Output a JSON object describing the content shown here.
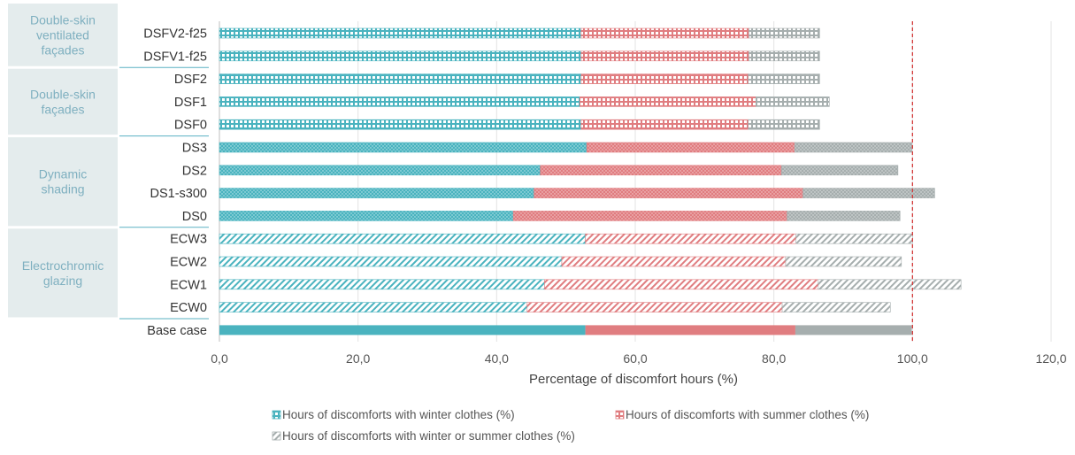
{
  "chart_data": {
    "type": "bar",
    "orientation": "horizontal",
    "stacked": true,
    "xlabel": "Percentage of discomfort hours (%)",
    "ylabel": "",
    "xlim": [
      0,
      120
    ],
    "xticks": [
      "0,0",
      "20,0",
      "40,0",
      "60,0",
      "80,0",
      "100,0",
      "120,0"
    ],
    "grid": "vertical",
    "reference_line": {
      "x": 100,
      "style": "dashed",
      "color": "#d43a3a"
    },
    "legend_position": "bottom",
    "categories": [
      "DSFV2-f25",
      "DSFV1-f25",
      "DSF2",
      "DSF1",
      "DSF0",
      "DS3",
      "DS2",
      "DS1-s300",
      "DS0",
      "ECW3",
      "ECW2",
      "ECW1",
      "ECW0",
      "Base case"
    ],
    "patterns": [
      "grid",
      "grid",
      "grid",
      "grid",
      "grid",
      "dots",
      "dots",
      "dots",
      "dots",
      "hatch",
      "hatch",
      "hatch",
      "hatch",
      "solid"
    ],
    "series": [
      {
        "name": "Hours of discomforts with winter clothes (%)",
        "color": "#4ab3bf",
        "values": [
          52.2,
          52.2,
          52.2,
          52.0,
          52.2,
          53.0,
          46.3,
          45.4,
          42.4,
          52.8,
          49.4,
          46.9,
          44.4,
          52.8
        ]
      },
      {
        "name": "Hours of discomforts with summer clothes (%)",
        "color": "#e07d80",
        "values": [
          24.2,
          24.2,
          24.1,
          25.4,
          24.1,
          30.0,
          34.8,
          38.8,
          39.5,
          30.4,
          32.3,
          39.5,
          36.8,
          30.3
        ]
      },
      {
        "name": "Hours of discomforts with winter or summer clothes (%)",
        "color": "#a6aeae",
        "values": [
          10.2,
          10.2,
          10.3,
          10.6,
          10.3,
          16.9,
          16.8,
          19.0,
          16.3,
          16.8,
          16.7,
          20.6,
          15.6,
          16.8
        ]
      }
    ],
    "groups": [
      {
        "label": "Double-skin ventilated façades",
        "lines": [
          "Double-skin",
          "ventilated",
          "façades"
        ]
      },
      {
        "label": "Double-skin façades",
        "lines": [
          "Double-skin",
          "façades"
        ]
      },
      {
        "label": "Dynamic shading",
        "lines": [
          "Dynamic",
          "shading"
        ]
      },
      {
        "label": "Electrochromic glazing",
        "lines": [
          "Electrochromic",
          "glazing"
        ]
      }
    ]
  }
}
